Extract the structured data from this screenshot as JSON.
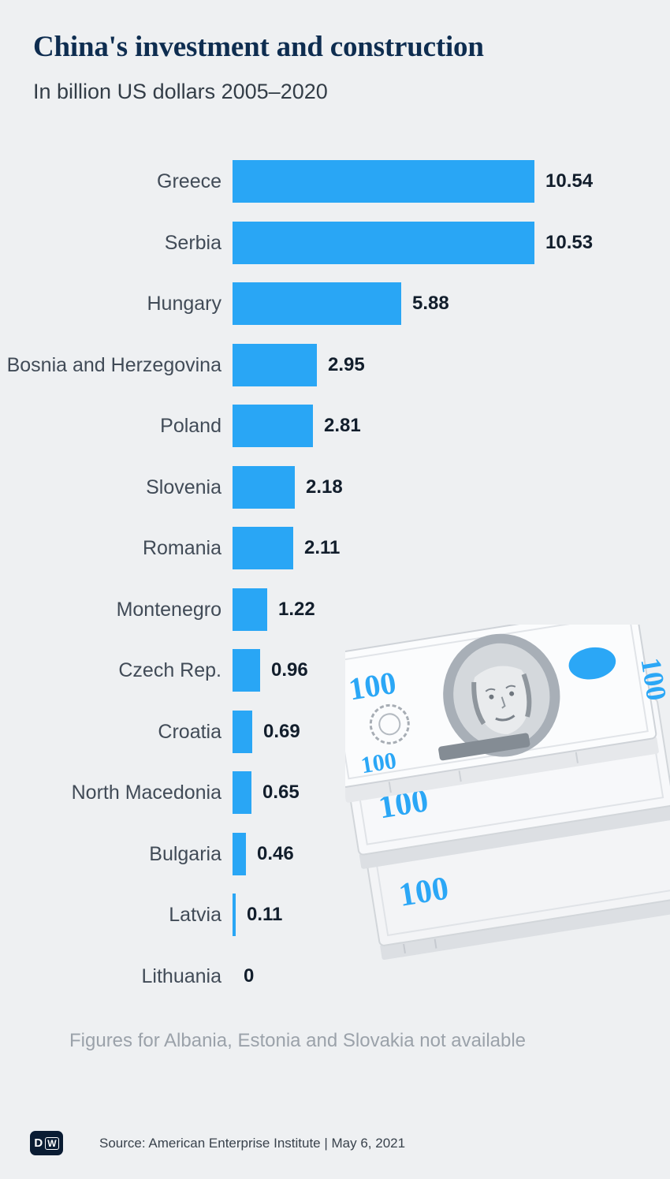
{
  "header": {
    "title": "China's investment and construction",
    "subtitle": "In billion US dollars 2005–2020"
  },
  "chart_data": {
    "type": "bar",
    "orientation": "horizontal",
    "title": "China's investment and construction",
    "subtitle": "In billion US dollars 2005–2020",
    "unit": "billion US dollars",
    "categories": [
      "Greece",
      "Serbia",
      "Hungary",
      "Bosnia and Herzegovina",
      "Poland",
      "Slovenia",
      "Romania",
      "Montenegro",
      "Czech Rep.",
      "Croatia",
      "North Macedonia",
      "Bulgaria",
      "Latvia",
      "Lithuania"
    ],
    "values": [
      10.54,
      10.53,
      5.88,
      2.95,
      2.81,
      2.18,
      2.11,
      1.22,
      0.96,
      0.69,
      0.65,
      0.46,
      0.11,
      0
    ],
    "value_labels": [
      "10.54",
      "10.53",
      "5.88",
      "2.95",
      "2.81",
      "2.18",
      "2.11",
      "1.22",
      "0.96",
      "0.69",
      "0.65",
      "0.46",
      "0.11",
      "0"
    ],
    "xlim": [
      0,
      10.54
    ],
    "grid": false,
    "legend": false,
    "bar_color": "#29a6f5"
  },
  "footnote": {
    "text": "Figures for Albania, Estonia and Slovakia not available"
  },
  "illustration": {
    "name": "stacked-100-dollar-bills",
    "denomination": "100"
  },
  "footer": {
    "logo_d": "D",
    "logo_w": "W",
    "source": "Source: American Enterprise Institute | May 6, 2021"
  }
}
